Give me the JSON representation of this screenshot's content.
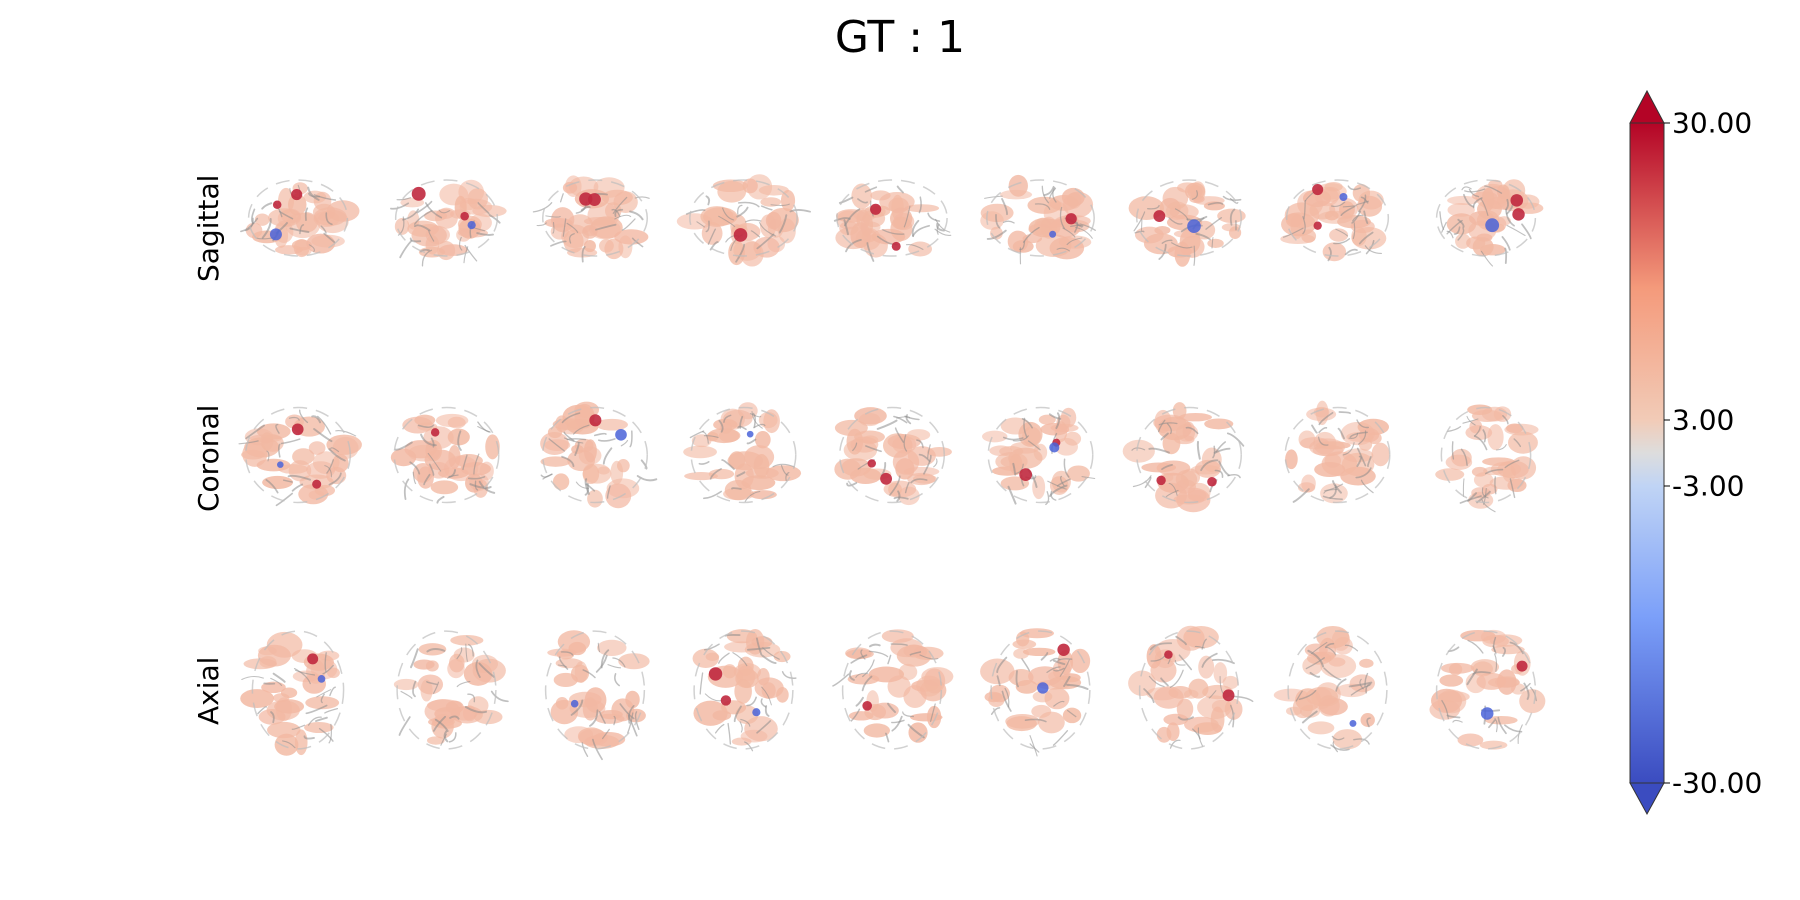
{
  "title": "GT : 1",
  "rows": [
    {
      "label": "Sagittal",
      "view": "sagittal"
    },
    {
      "label": "Coronal",
      "view": "coronal"
    },
    {
      "label": "Axial",
      "view": "axial"
    }
  ],
  "slices_per_row": 9,
  "colorbar": {
    "colormap": "coolwarm",
    "vmin": -30,
    "vmax": 30,
    "threshold": 3,
    "tick_labels": [
      "30.00",
      "3.00",
      "-3.00",
      "-30.00"
    ],
    "tick_values": [
      30,
      3,
      -3,
      -30
    ],
    "colors": {
      "high": "#b40426",
      "mid": "#dddddd",
      "low": "#3b4cc0"
    }
  },
  "colors": {
    "background": "#ffffff",
    "anatomy_outline": "#8c8c8c",
    "positive_blob": "#f2b8a2",
    "hot_spot": "#c0283e",
    "negative_spot": "#4a63d8"
  }
}
